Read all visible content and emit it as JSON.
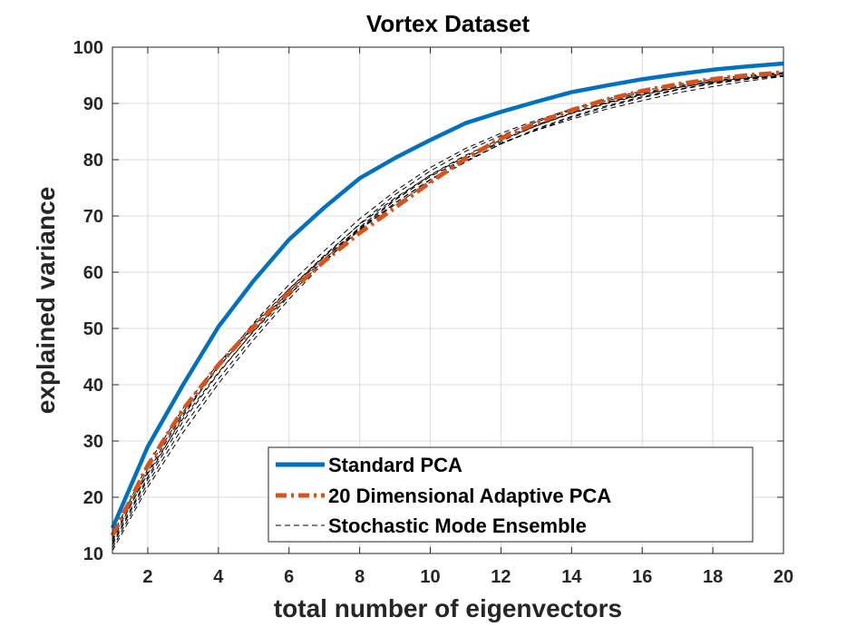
{
  "chart_data": {
    "type": "line",
    "title": "Vortex Dataset",
    "xlabel": "total number of eigenvectors",
    "ylabel": "explained variance",
    "xlim": [
      1,
      20
    ],
    "ylim": [
      10,
      100
    ],
    "xticks": [
      2,
      4,
      6,
      8,
      10,
      12,
      14,
      16,
      18,
      20
    ],
    "yticks": [
      10,
      20,
      30,
      40,
      50,
      60,
      70,
      80,
      90,
      100
    ],
    "grid": true,
    "legend_position": "bottom-right",
    "x": [
      1,
      2,
      3,
      4,
      5,
      6,
      7,
      8,
      9,
      10,
      11,
      12,
      13,
      14,
      15,
      16,
      17,
      18,
      19,
      20
    ],
    "series": [
      {
        "name": "Standard PCA",
        "color": "#0072bd",
        "style": "solid",
        "values": [
          14.5,
          29,
          40,
          50.3,
          58.5,
          65.8,
          71.5,
          76.7,
          80.3,
          83.5,
          86.5,
          88.5,
          90.3,
          92,
          93.2,
          94.3,
          95.2,
          96,
          96.6,
          97.1
        ]
      },
      {
        "name": "20 Dimensional Adaptive PCA",
        "color": "#d95319",
        "style": "dashdot",
        "values": [
          13.2,
          25.6,
          35.6,
          43.5,
          50.3,
          56.4,
          62,
          67,
          71.5,
          76,
          80.2,
          83.8,
          86.5,
          88.8,
          90.7,
          92.2,
          93.4,
          94.3,
          95,
          95.5
        ]
      },
      {
        "name": "Stochastic Mode Ensemble",
        "color": "#000000",
        "style": "dashed",
        "members": [
          [
            13.2,
            25.8,
            35.8,
            43.8,
            50.8,
            57,
            62.8,
            67.8,
            72,
            76,
            79.6,
            82.8,
            85.5,
            87.7,
            89.6,
            91.2,
            92.5,
            93.6,
            94.4,
            95
          ],
          [
            12.2,
            24.5,
            34.8,
            43,
            50.5,
            57,
            63,
            68.5,
            73.2,
            77.2,
            80.6,
            83.5,
            86,
            88.2,
            90,
            91.5,
            92.8,
            93.8,
            94.6,
            95.2
          ],
          [
            11.5,
            23.2,
            33.5,
            42,
            49.6,
            56.5,
            62.8,
            68.6,
            73.8,
            78,
            81.5,
            84.3,
            86.7,
            88.8,
            90.5,
            91.9,
            93.1,
            94,
            94.7,
            95.3
          ],
          [
            11,
            22.5,
            32.5,
            41,
            48.8,
            55.8,
            62.3,
            68,
            73,
            77.3,
            80.8,
            83.7,
            86.2,
            88.3,
            90.1,
            91.6,
            92.8,
            93.8,
            94.5,
            95
          ],
          [
            10.5,
            21.8,
            31.5,
            40.2,
            48,
            55.2,
            61.8,
            67.7,
            72.8,
            77,
            80.3,
            83,
            85.2,
            87.2,
            89,
            90.5,
            91.9,
            93,
            94,
            94.8
          ],
          [
            12.6,
            24.2,
            34,
            42.2,
            49.5,
            56,
            62,
            67.5,
            72.3,
            76.5,
            80.2,
            83.3,
            86,
            88.3,
            90.2,
            91.7,
            93,
            94,
            94.8,
            95.3
          ],
          [
            11.8,
            23.6,
            34.4,
            43.4,
            51,
            57.8,
            63.8,
            69.5,
            74.4,
            78.6,
            82,
            84.7,
            87,
            89,
            90.8,
            92.2,
            93.4,
            94.3,
            95,
            95.5
          ],
          [
            12.8,
            25,
            35.2,
            43.2,
            50.2,
            56.5,
            62.4,
            67.6,
            72.3,
            76.4,
            79.8,
            82.8,
            85.3,
            87.5,
            89.4,
            91,
            92.4,
            93.5,
            94.3,
            94.9
          ]
        ]
      }
    ]
  }
}
